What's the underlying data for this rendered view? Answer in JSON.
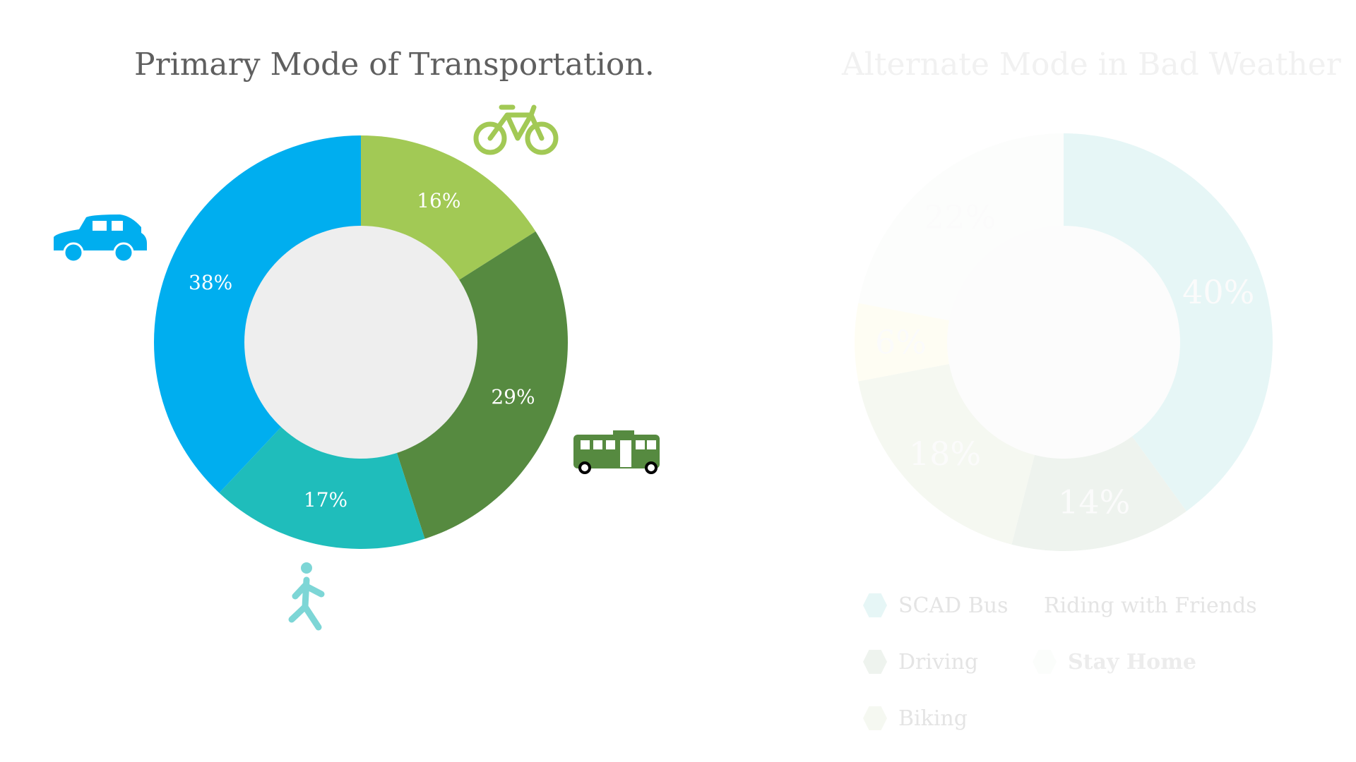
{
  "chart_data": [
    {
      "type": "pie",
      "title": "Primary Mode of Transportation.",
      "donut": true,
      "slices": [
        {
          "label": "",
          "icon": "bicycle-icon",
          "value": 16,
          "display": "16%",
          "color": "#a2c955"
        },
        {
          "label": "",
          "icon": "bus-icon",
          "value": 29,
          "display": "29%",
          "color": "#568a40"
        },
        {
          "label": "",
          "icon": "pedestrian-icon",
          "value": 17,
          "display": "17%",
          "color": "#1fbdbb"
        },
        {
          "label": "",
          "icon": "car-icon",
          "value": 38,
          "display": "38%",
          "color": "#00aeef"
        }
      ]
    },
    {
      "type": "pie",
      "title": "Alternate Mode in Bad Weather",
      "donut": true,
      "faded": true,
      "slices": [
        {
          "label": "SCAD Bus",
          "value": 40,
          "display": "40%",
          "color": "#e6f6f6"
        },
        {
          "label": "Driving",
          "value": 14,
          "display": "14%",
          "color": "#eef3ee"
        },
        {
          "label": "Biking",
          "value": 18,
          "display": "18%",
          "color": "#f5f8f1"
        },
        {
          "label": "Riding with Friends",
          "value": 6,
          "display": "6%",
          "color": "#fefdf3"
        },
        {
          "label": "Stay Home",
          "value": 22,
          "display": "22%",
          "color": "#fcfdfc"
        }
      ],
      "legend": [
        "SCAD Bus",
        "Riding with Friends",
        "Driving",
        "Stay Home",
        "Biking"
      ]
    }
  ],
  "colors": {
    "primary_hole": "#eeeeee",
    "alt_hole": "#fcfcfc",
    "title_primary": "#5f5f5f",
    "title_alt": "#f1f1f1"
  }
}
